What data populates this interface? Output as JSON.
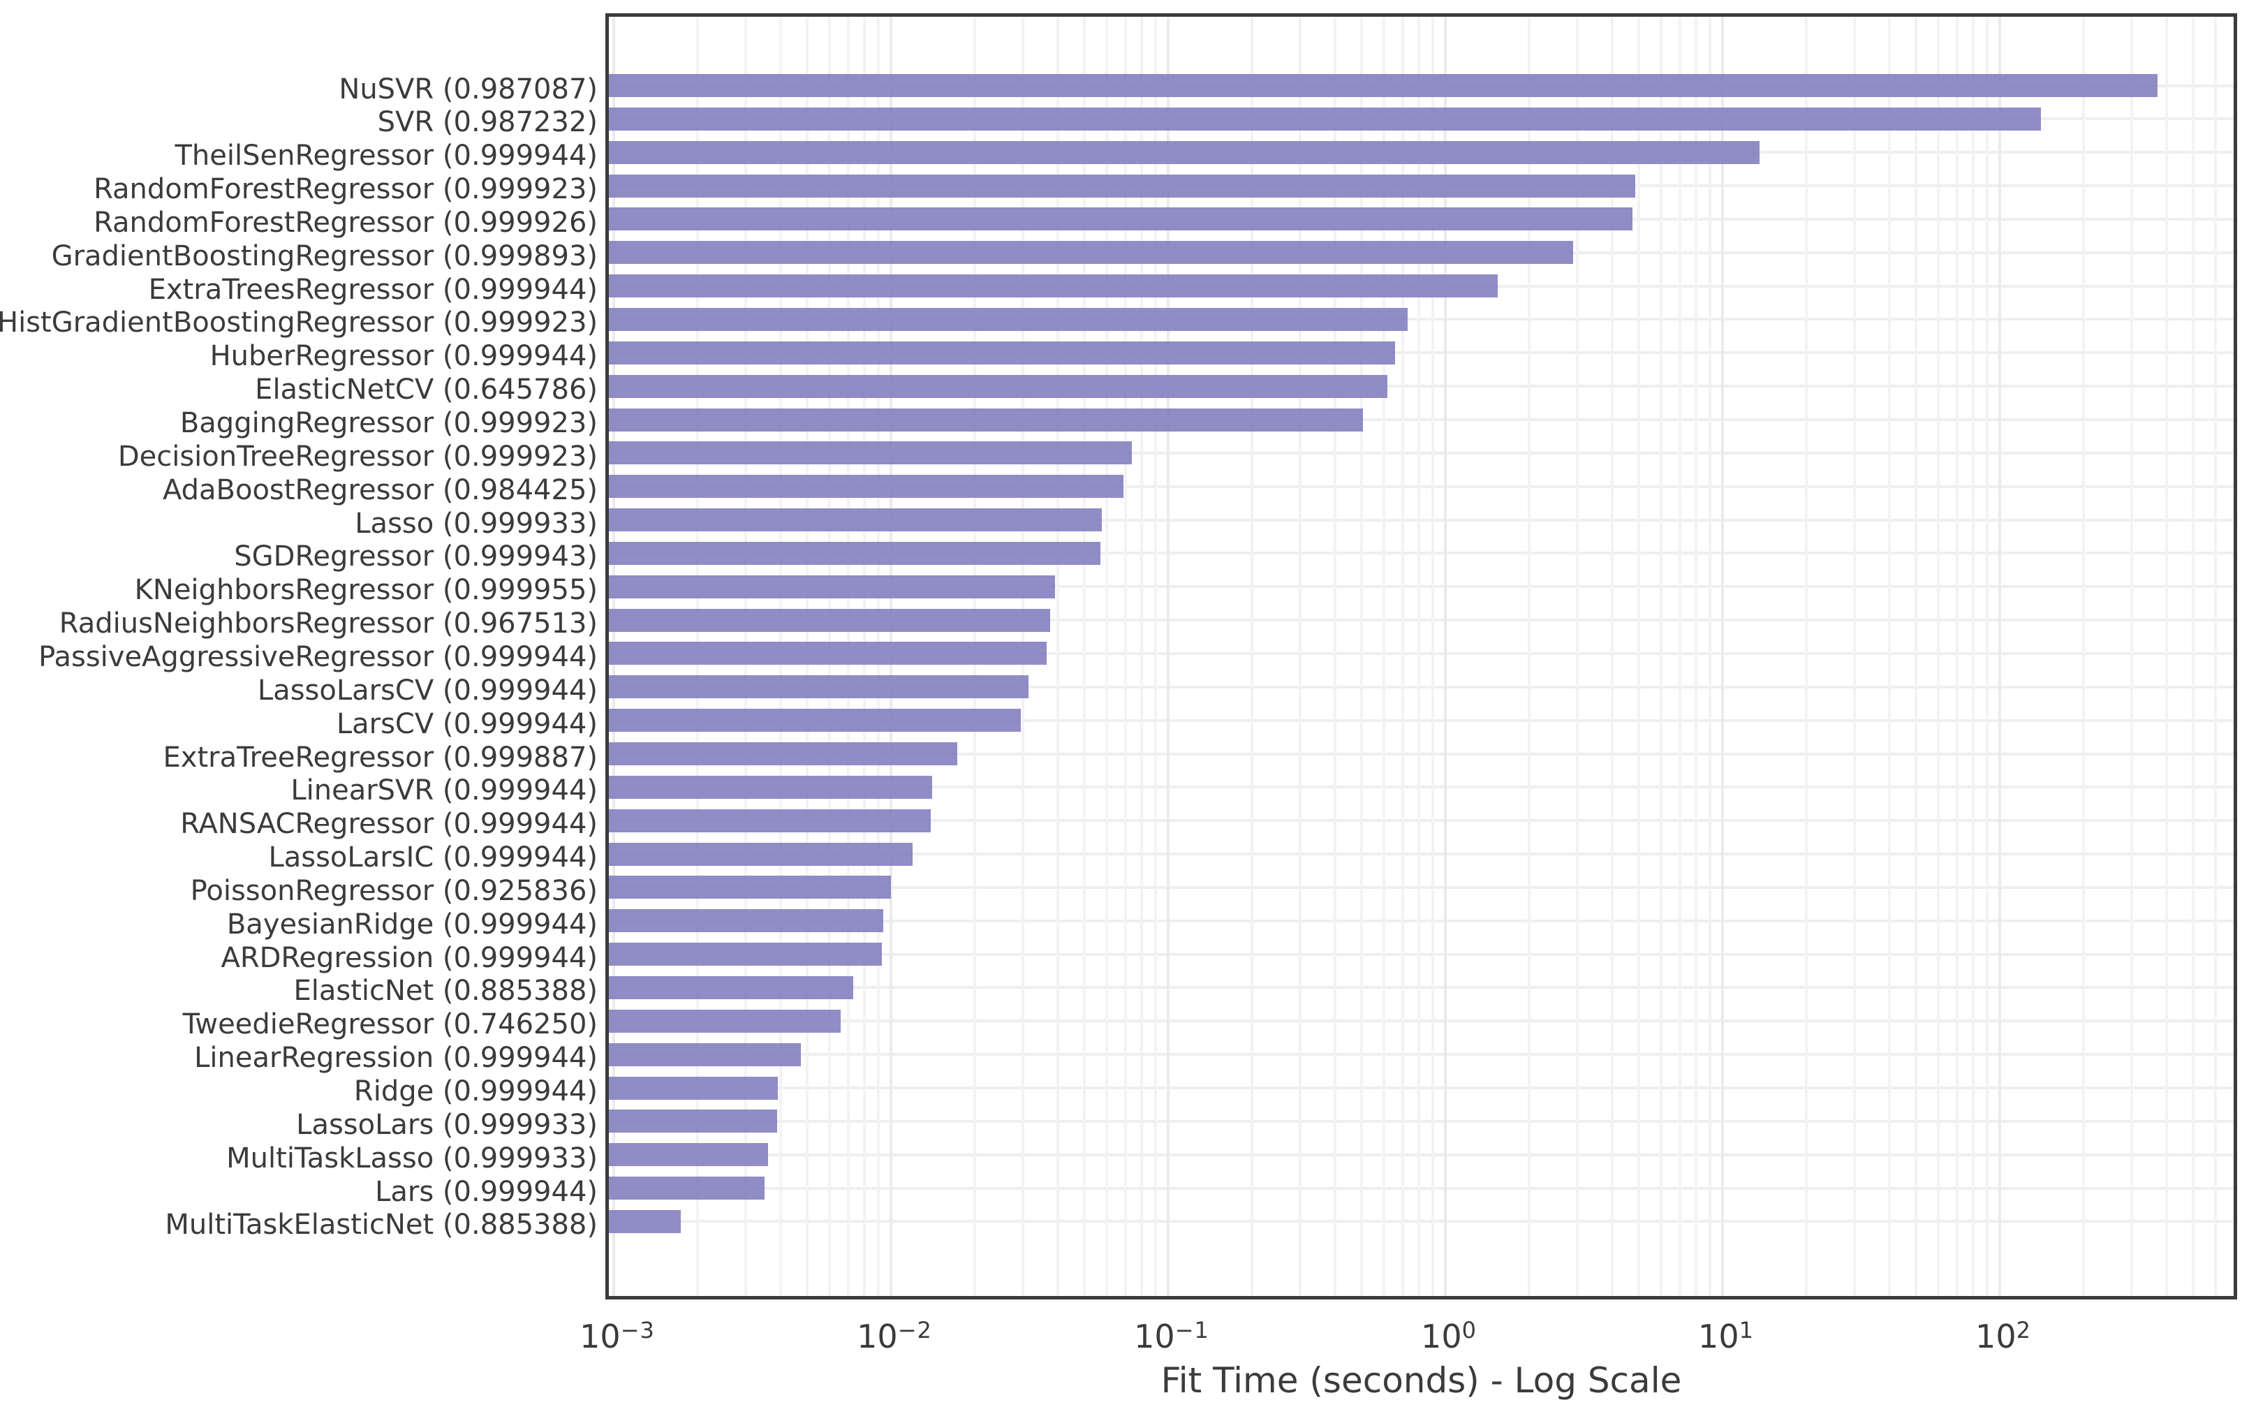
{
  "chart_data": {
    "type": "bar",
    "orientation": "horizontal",
    "title": "",
    "xlabel": "Fit Time (seconds) - Log Scale",
    "ylabel": "",
    "x_scale": "log",
    "xlim": [
      0.00093,
      680
    ],
    "grid": "major+minor, on",
    "legend": "none",
    "x_tick_exponents": [
      -3,
      -2,
      -1,
      0,
      1,
      2
    ],
    "x_tick_labels": [
      "10⁻³",
      "10⁻²",
      "10⁻¹",
      "10⁰",
      "10¹",
      "10²"
    ],
    "bar_unit": "seconds",
    "models": [
      {
        "name": "NuSVR",
        "r2": "0.987087",
        "fit_time_s": 360
      },
      {
        "name": "SVR",
        "r2": "0.987232",
        "fit_time_s": 137
      },
      {
        "name": "TheilSenRegressor",
        "r2": "0.999944",
        "fit_time_s": 13.2
      },
      {
        "name": "RandomForestRegressor",
        "r2": "0.999923",
        "fit_time_s": 4.7
      },
      {
        "name": "RandomForestRegressor",
        "r2": "0.999926",
        "fit_time_s": 4.6
      },
      {
        "name": "GradientBoostingRegressor",
        "r2": "0.999893",
        "fit_time_s": 2.8
      },
      {
        "name": "ExtraTreesRegressor",
        "r2": "0.999944",
        "fit_time_s": 1.5
      },
      {
        "name": "HistGradientBoostingRegressor",
        "r2": "0.999923",
        "fit_time_s": 0.71
      },
      {
        "name": "HuberRegressor",
        "r2": "0.999944",
        "fit_time_s": 0.64
      },
      {
        "name": "ElasticNetCV",
        "r2": "0.645786",
        "fit_time_s": 0.6
      },
      {
        "name": "BaggingRegressor",
        "r2": "0.999923",
        "fit_time_s": 0.49
      },
      {
        "name": "DecisionTreeRegressor",
        "r2": "0.999923",
        "fit_time_s": 0.072
      },
      {
        "name": "AdaBoostRegressor",
        "r2": "0.984425",
        "fit_time_s": 0.067
      },
      {
        "name": "Lasso",
        "r2": "0.999933",
        "fit_time_s": 0.056
      },
      {
        "name": "SGDRegressor",
        "r2": "0.999943",
        "fit_time_s": 0.0555
      },
      {
        "name": "KNeighborsRegressor",
        "r2": "0.999955",
        "fit_time_s": 0.038
      },
      {
        "name": "RadiusNeighborsRegressor",
        "r2": "0.967513",
        "fit_time_s": 0.0365
      },
      {
        "name": "PassiveAggressiveRegressor",
        "r2": "0.999944",
        "fit_time_s": 0.0354
      },
      {
        "name": "LassoLarsCV",
        "r2": "0.999944",
        "fit_time_s": 0.0304
      },
      {
        "name": "LarsCV",
        "r2": "0.999944",
        "fit_time_s": 0.0286
      },
      {
        "name": "ExtraTreeRegressor",
        "r2": "0.999887",
        "fit_time_s": 0.0169
      },
      {
        "name": "LinearSVR",
        "r2": "0.999944",
        "fit_time_s": 0.0137
      },
      {
        "name": "RANSACRegressor",
        "r2": "0.999944",
        "fit_time_s": 0.0135
      },
      {
        "name": "LassoLarsIC",
        "r2": "0.999944",
        "fit_time_s": 0.0116
      },
      {
        "name": "PoissonRegressor",
        "r2": "0.925836",
        "fit_time_s": 0.0097
      },
      {
        "name": "BayesianRidge",
        "r2": "0.999944",
        "fit_time_s": 0.0091
      },
      {
        "name": "ARDRegression",
        "r2": "0.999944",
        "fit_time_s": 0.009
      },
      {
        "name": "ElasticNet",
        "r2": "0.885388",
        "fit_time_s": 0.0071
      },
      {
        "name": "TweedieRegressor",
        "r2": "0.746250",
        "fit_time_s": 0.0064
      },
      {
        "name": "LinearRegression",
        "r2": "0.999944",
        "fit_time_s": 0.0046
      },
      {
        "name": "Ridge",
        "r2": "0.999944",
        "fit_time_s": 0.0038
      },
      {
        "name": "LassoLars",
        "r2": "0.999933",
        "fit_time_s": 0.00378
      },
      {
        "name": "MultiTaskLasso",
        "r2": "0.999933",
        "fit_time_s": 0.0035
      },
      {
        "name": "Lars",
        "r2": "0.999944",
        "fit_time_s": 0.0034
      },
      {
        "name": "MultiTaskElasticNet",
        "r2": "0.885388",
        "fit_time_s": 0.0017
      }
    ],
    "colors": {
      "bar": "rgba(127,123,188,0.87)",
      "bar_flat": "#928FC6",
      "spine": "#3b3b3b",
      "text": "#3b3b3b",
      "grid_major": "#ebebeb",
      "grid_minor": "#f3f3f3",
      "grid_row": "#efefef",
      "background": "#ffffff"
    }
  }
}
